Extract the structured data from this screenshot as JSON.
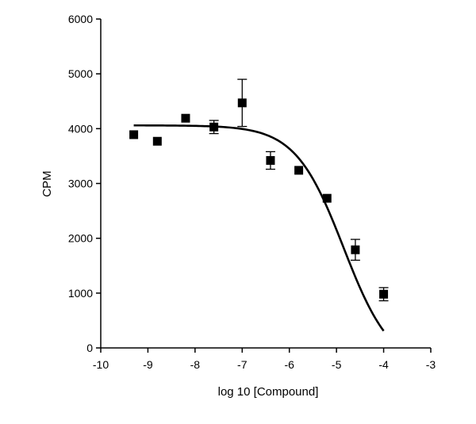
{
  "chart_data": {
    "type": "scatter",
    "title": "",
    "xlabel": "log 10 [Compound]",
    "ylabel": "CPM",
    "xlim": [
      -10,
      -3
    ],
    "ylim": [
      0,
      6000
    ],
    "xticks": [
      -10,
      -9,
      -8,
      -7,
      -6,
      -5,
      -4,
      -3
    ],
    "yticks": [
      0,
      1000,
      2000,
      3000,
      4000,
      5000,
      6000
    ],
    "xtick_labels": [
      "-10",
      "-9",
      "-8",
      "-7",
      "-6",
      "-5",
      "-4",
      "-3"
    ],
    "ytick_labels": [
      "0",
      "1000",
      "2000",
      "3000",
      "4000",
      "5000",
      "6000"
    ],
    "grid": false,
    "legend": "none",
    "series": [
      {
        "marker": "square",
        "color": "#000000",
        "points": [
          {
            "x": -9.3,
            "y": 3890
          },
          {
            "x": -8.8,
            "y": 3770
          },
          {
            "x": -8.2,
            "y": 4190
          },
          {
            "x": -7.6,
            "y": 4030,
            "err": 120
          },
          {
            "x": -7.0,
            "y": 4470,
            "err": 430
          },
          {
            "x": -6.4,
            "y": 3420,
            "err": 160
          },
          {
            "x": -5.8,
            "y": 3240
          },
          {
            "x": -5.2,
            "y": 2730
          },
          {
            "x": -4.6,
            "y": 1790,
            "err": 190
          },
          {
            "x": -4.0,
            "y": 980,
            "err": 120
          }
        ]
      }
    ],
    "fit_curve": {
      "model": "sigmoidal dose-response",
      "top": 4060,
      "bottom": -400,
      "log_ic50": -4.85,
      "hill_slope": 0.85,
      "x_range": [
        -9.3,
        -4.0
      ],
      "color": "#000000"
    }
  }
}
